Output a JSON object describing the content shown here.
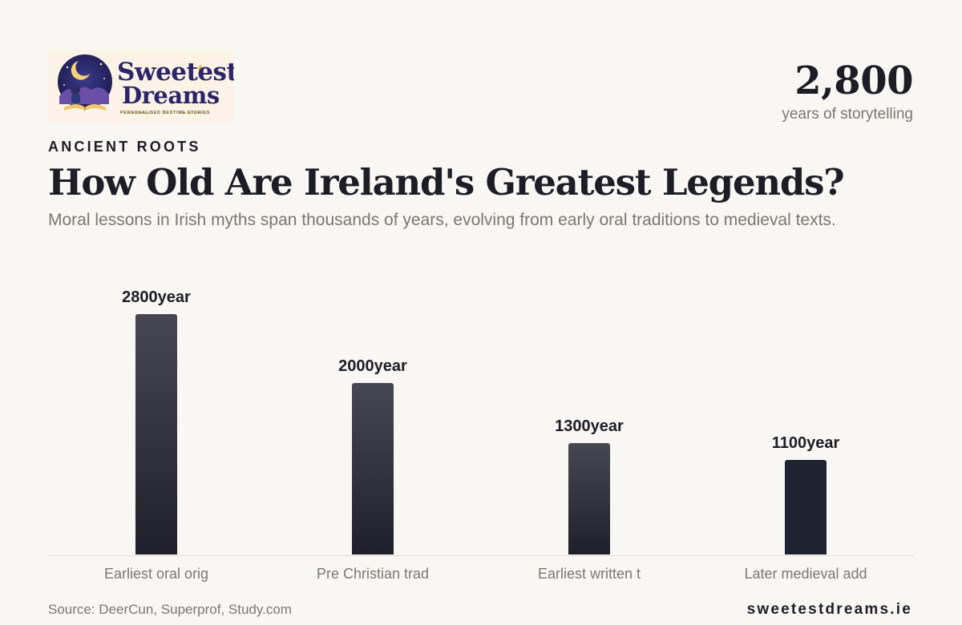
{
  "brand": {
    "logo_line1": "Sweetest",
    "logo_line2": "Dreams",
    "logo_tagline": "PERSONALISED BEDTIME STORIES",
    "website": "sweetestdreams.ie"
  },
  "highlight": {
    "value": "2,800",
    "label": "years of storytelling"
  },
  "header": {
    "eyebrow": "ANCIENT ROOTS",
    "title": "How Old Are Ireland's Greatest Legends?",
    "subtitle": "Moral lessons in Irish myths span thousands of years, evolving from early oral traditions to medieval texts."
  },
  "colors": {
    "bar_top": "#464751",
    "bar_bottom": "#1f2029",
    "bar_last": "#1f2230",
    "background": "#f9f7f3"
  },
  "chart_data": {
    "type": "bar",
    "categories": [
      "Earliest oral orig",
      "Pre Christian trad",
      "Earliest written t",
      "Later medieval add"
    ],
    "values": [
      2800,
      2000,
      1300,
      1100
    ],
    "value_labels": [
      "2800year",
      "2000year",
      "1300year",
      "1100year"
    ],
    "ylim": [
      0,
      2800
    ],
    "grid": false,
    "xlabel": "",
    "ylabel": ""
  },
  "footer": {
    "source": "Source: DeerCun, Superprof, Study.com"
  }
}
